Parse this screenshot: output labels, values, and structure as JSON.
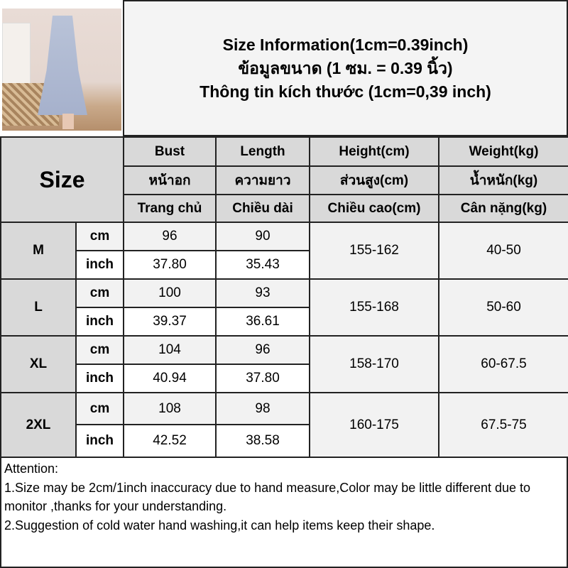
{
  "header": {
    "title_en": "Size Information(1cm=0.39inch)",
    "title_th": "ข้อมูลขนาด (1 ซม. = 0.39 นิ้ว)",
    "title_vi": "Thông tin kích thước (1cm=0,39 inch)"
  },
  "table": {
    "size_label": "Size",
    "columns": [
      {
        "en": "Bust",
        "th": "หน้าอก",
        "vi": "Trang chủ"
      },
      {
        "en": "Length",
        "th": "ความยาว",
        "vi": "Chiều dài"
      },
      {
        "en": "Height(cm)",
        "th": "ส่วนสูง(cm)",
        "vi": "Chiều cao(cm)"
      },
      {
        "en": "Weight(kg)",
        "th": "น้ำหนัก(kg)",
        "vi": "Cân nặng(kg)"
      }
    ],
    "unit_cm": "cm",
    "unit_inch": "inch",
    "rows": [
      {
        "size": "M",
        "bust_cm": "96",
        "length_cm": "90",
        "bust_inch": "37.80",
        "length_inch": "35.43",
        "height": "155-162",
        "weight": "40-50"
      },
      {
        "size": "L",
        "bust_cm": "100",
        "length_cm": "93",
        "bust_inch": "39.37",
        "length_inch": "36.61",
        "height": "155-168",
        "weight": "50-60"
      },
      {
        "size": "XL",
        "bust_cm": "104",
        "length_cm": "96",
        "bust_inch": "40.94",
        "length_inch": "37.80",
        "height": "158-170",
        "weight": "60-67.5"
      },
      {
        "size": "2XL",
        "bust_cm": "108",
        "length_cm": "98",
        "bust_inch": "42.52",
        "length_inch": "38.58",
        "height": "160-175",
        "weight": "67.5-75"
      }
    ]
  },
  "notes": {
    "heading": "Attention:",
    "line1": "1.Size may be 2cm/1inch inaccuracy due to hand measure,Color may be little different due to monitor ,thanks for your understanding.",
    "line2": "2.Suggestion of cold water hand washing,it can help items keep their shape."
  }
}
